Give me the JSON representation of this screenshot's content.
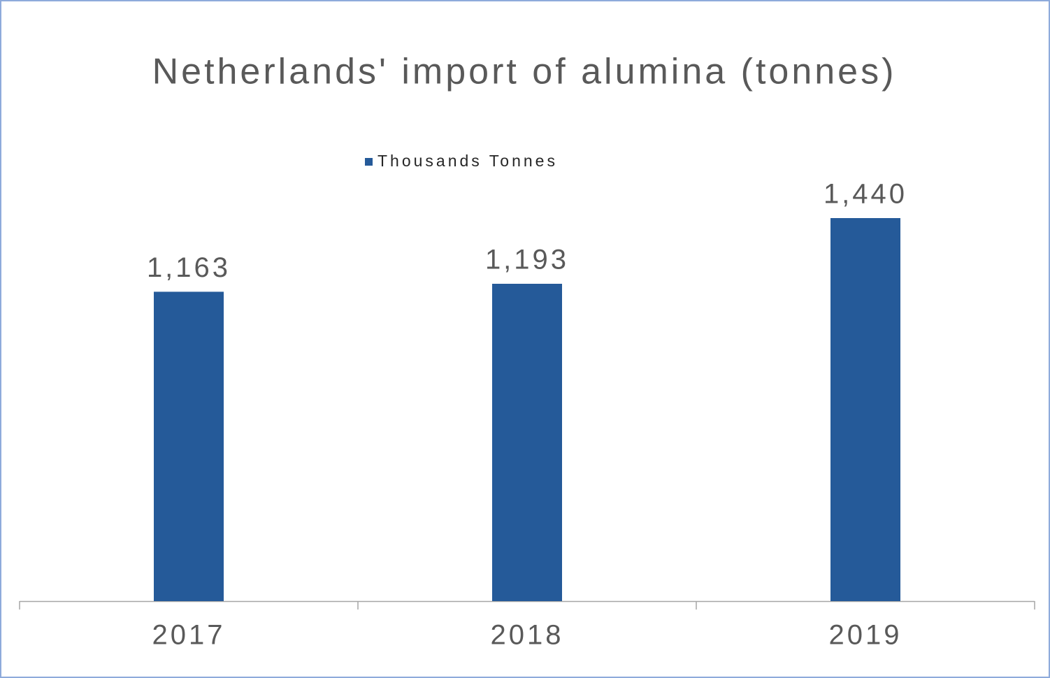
{
  "chart_data": {
    "type": "bar",
    "title": "Netherlands' import of alumina (tonnes)",
    "categories": [
      "2017",
      "2018",
      "2019"
    ],
    "series": [
      {
        "name": "Thousands Tonnes",
        "color": "#255a99",
        "values": [
          1163,
          1193,
          1440
        ],
        "value_labels": [
          "1,163",
          "1,193",
          "1,440"
        ]
      }
    ],
    "legend": "top"
  }
}
